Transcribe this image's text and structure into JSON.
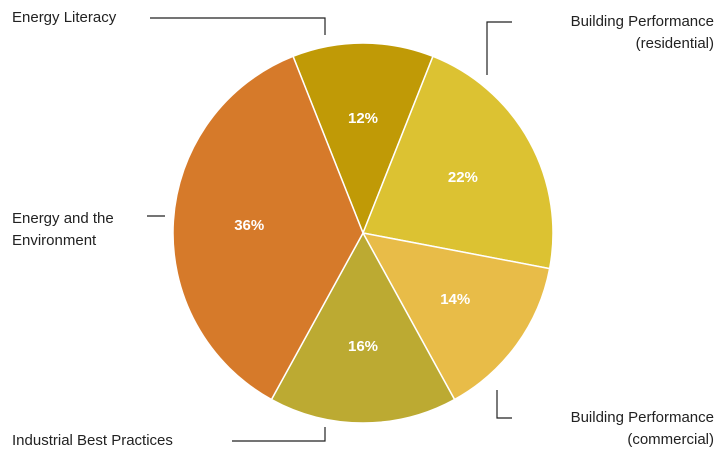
{
  "chart_data": {
    "type": "pie",
    "categories": [
      [
        "Energy Literacy"
      ],
      [
        "Building Performance",
        "(residential)"
      ],
      [
        "Building Performance",
        "(commercial)"
      ],
      [
        "Industrial Best Practices"
      ],
      [
        "Energy and the",
        "Environment"
      ]
    ],
    "values": [
      12,
      22,
      14,
      16,
      36
    ],
    "value_labels": [
      "12%",
      "22%",
      "14%",
      "16%",
      "36%"
    ],
    "colors": [
      "#c09a06",
      "#dcc232",
      "#e8bc48",
      "#bcaa32",
      "#d67a2a"
    ]
  }
}
